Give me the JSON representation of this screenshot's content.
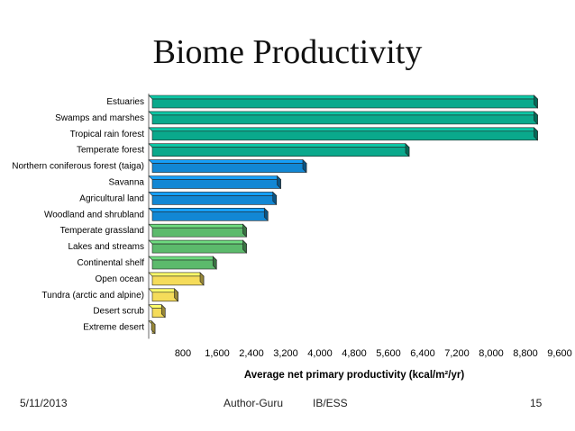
{
  "slide": {
    "title": "Biome Productivity",
    "footer": {
      "date": "5/11/2013",
      "author": "Author-Guru",
      "course": "IB/ESS",
      "page": "15"
    }
  },
  "colors": {
    "teal": "#0aa98c",
    "blue": "#1287d4",
    "green": "#5cba6c",
    "yellow": "#f5dc5a"
  },
  "chart_data": {
    "type": "bar",
    "orientation": "horizontal",
    "categories": [
      "Estuaries",
      "Swamps and marshes",
      "Tropical rain forest",
      "Temperate forest",
      "Northern coniferous forest (taiga)",
      "Savanna",
      "Agricultural land",
      "Woodland and shrubland",
      "Temperate grassland",
      "Lakes and streams",
      "Continental shelf",
      "Open ocean",
      "Tundra (arctic and alpine)",
      "Desert scrub",
      "Extreme desert"
    ],
    "values": [
      9000,
      9000,
      9000,
      6000,
      3600,
      3000,
      2900,
      2700,
      2200,
      2200,
      1500,
      1200,
      600,
      300,
      50
    ],
    "bar_colors": [
      "teal",
      "teal",
      "teal",
      "teal",
      "blue",
      "blue",
      "blue",
      "blue",
      "green",
      "green",
      "green",
      "yellow",
      "yellow",
      "yellow",
      "yellow"
    ],
    "xlabel": "Average net primary productivity (kcal/m²/yr)",
    "xlim": [
      0,
      9600
    ],
    "xticks": [
      800,
      1600,
      2400,
      3200,
      4000,
      4800,
      5600,
      6400,
      7200,
      8000,
      8800,
      9600
    ],
    "xtick_labels": [
      "800",
      "1,600",
      "2,400",
      "3,200",
      "4,000",
      "4,800",
      "5,600",
      "6,400",
      "7,200",
      "8,000",
      "8,800",
      "9,600"
    ],
    "grid": false,
    "bar_style": "3d"
  }
}
